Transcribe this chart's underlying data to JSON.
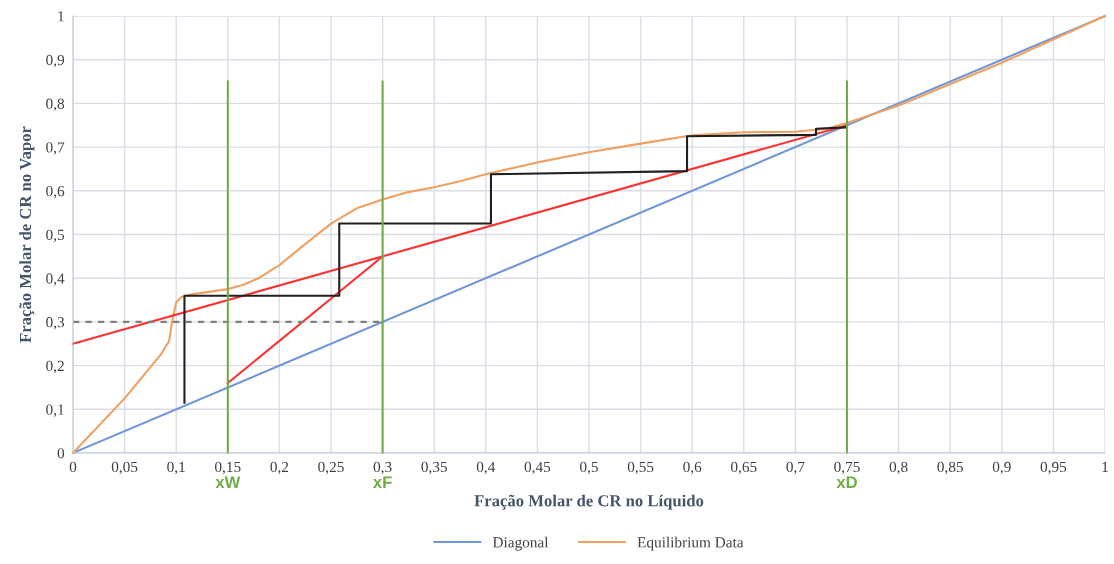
{
  "chart_data": {
    "type": "line",
    "xlabel": "Fração Molar de CR no Líquido",
    "ylabel": "Fração Molar de CR no Vapor",
    "xlim": [
      0,
      1
    ],
    "ylim": [
      0,
      1
    ],
    "xticks": [
      0,
      {
        "value": 0.05,
        "label": "0,05"
      },
      {
        "value": 0.1,
        "label": "0,1"
      },
      {
        "value": 0.15,
        "label": "0,15"
      },
      {
        "value": 0.2,
        "label": "0,2"
      },
      {
        "value": 0.25,
        "label": "0,25"
      },
      {
        "value": 0.3,
        "label": "0,3"
      },
      {
        "value": 0.35,
        "label": "0,35"
      },
      {
        "value": 0.4,
        "label": "0,4"
      },
      {
        "value": 0.45,
        "label": "0,45"
      },
      {
        "value": 0.5,
        "label": "0,5"
      },
      {
        "value": 0.55,
        "label": "0,55"
      },
      {
        "value": 0.6,
        "label": "0,6"
      },
      {
        "value": 0.65,
        "label": "0,65"
      },
      {
        "value": 0.7,
        "label": "0,7"
      },
      {
        "value": 0.75,
        "label": "0,75"
      },
      {
        "value": 0.8,
        "label": "0,8"
      },
      {
        "value": 0.85,
        "label": "0,85"
      },
      {
        "value": 0.9,
        "label": "0,9"
      },
      {
        "value": 0.95,
        "label": "0,95"
      },
      1
    ],
    "yticks": [
      0,
      {
        "value": 0.1,
        "label": "0,1"
      },
      {
        "value": 0.2,
        "label": "0,2"
      },
      {
        "value": 0.3,
        "label": "0,3"
      },
      {
        "value": 0.4,
        "label": "0,4"
      },
      {
        "value": 0.5,
        "label": "0,5"
      },
      {
        "value": 0.6,
        "label": "0,6"
      },
      {
        "value": 0.7,
        "label": "0,7"
      },
      {
        "value": 0.8,
        "label": "0,8"
      },
      {
        "value": 0.9,
        "label": "0,9"
      },
      1
    ],
    "grid": true,
    "legend": "bottom",
    "marker": "none",
    "series": [
      {
        "name": "Diagonal",
        "color": "#6f96d8",
        "x": [
          0,
          1
        ],
        "values": [
          0,
          1
        ]
      },
      {
        "name": "Equilibrium Data",
        "color": "#f0a060",
        "x": [
          0,
          0.05,
          0.085,
          0.093,
          0.096,
          0.1,
          0.105,
          0.115,
          0.15,
          0.165,
          0.18,
          0.2,
          0.225,
          0.25,
          0.275,
          0.3,
          0.325,
          0.35,
          0.375,
          0.4,
          0.45,
          0.5,
          0.55,
          0.6,
          0.65,
          0.7,
          0.73,
          0.75,
          0.8,
          0.9,
          1
        ],
        "values": [
          0,
          0.125,
          0.225,
          0.255,
          0.3,
          0.345,
          0.357,
          0.363,
          0.375,
          0.385,
          0.4,
          0.43,
          0.478,
          0.525,
          0.56,
          0.58,
          0.597,
          0.608,
          0.622,
          0.638,
          0.665,
          0.688,
          0.708,
          0.727,
          0.734,
          0.735,
          0.742,
          0.755,
          0.795,
          0.893,
          1
        ]
      },
      {
        "color": "#ff3030",
        "x": [
          0,
          0.75
        ],
        "values": [
          0.25,
          0.75
        ]
      },
      {
        "color": "#ff3030",
        "x": [
          0.15,
          0.3
        ],
        "values": [
          0.16,
          0.45
        ]
      },
      {
        "color": "#808080",
        "x": [
          0,
          0.3
        ],
        "values": [
          0.3,
          0.3
        ],
        "line_style": "dashed"
      },
      {
        "color": "#202020",
        "x": [
          0.108,
          0.108,
          0.258,
          0.258,
          0.405,
          0.405,
          0.595,
          0.595,
          0.72,
          0.72,
          0.748
        ],
        "values": [
          0.115,
          0.36,
          0.36,
          0.525,
          0.525,
          0.638,
          0.645,
          0.725,
          0.728,
          0.742,
          0.745
        ]
      },
      {
        "name": "xW",
        "color": "#70ad47",
        "x": [
          0.15,
          0.15
        ],
        "values": [
          0,
          0.85
        ]
      },
      {
        "name": "xF",
        "color": "#70ad47",
        "x": [
          0.3,
          0.3
        ],
        "values": [
          0,
          0.85
        ]
      },
      {
        "name": "xD",
        "color": "#70ad47",
        "x": [
          0.75,
          0.75
        ],
        "values": [
          0,
          0.85
        ]
      }
    ]
  }
}
